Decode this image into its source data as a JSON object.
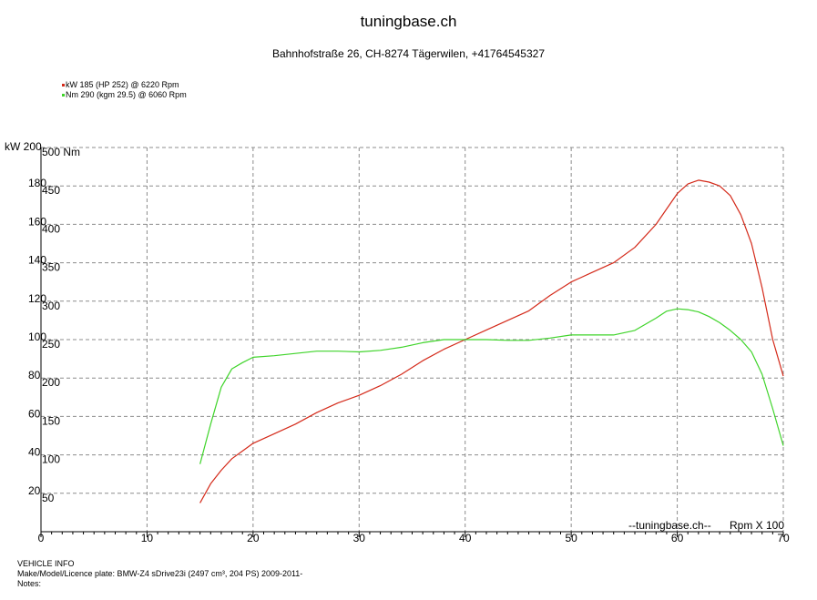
{
  "header": {
    "title": "tuningbase.ch",
    "subtitle": "Bahnhofstraße 26, CH-8274 Tägerwilen, +41764545327"
  },
  "colors": {
    "power": "#d42a1a",
    "torque": "#3fd42a",
    "grid": "#8c8c8c"
  },
  "chart_data": {
    "type": "line",
    "x_label": "Rpm X 100",
    "watermark": "--tuningbase.ch--",
    "x_range": [
      0,
      70
    ],
    "x_ticks": [
      0,
      10,
      20,
      30,
      40,
      50,
      60,
      70
    ],
    "y_left": {
      "unit": "kW",
      "range": [
        0,
        200
      ],
      "ticks": [
        0,
        20,
        40,
        60,
        80,
        100,
        120,
        140,
        160,
        180,
        200
      ]
    },
    "y_right": {
      "unit": "Nm",
      "range": [
        0,
        500
      ],
      "ticks": [
        50,
        100,
        150,
        200,
        250,
        300,
        350,
        400,
        450,
        500
      ]
    },
    "grid": true,
    "legend_position": "top-left",
    "series": [
      {
        "name": "kW 185 (HP 252) @ 6220 Rpm",
        "axis": "left",
        "x": [
          15,
          16,
          17,
          18,
          19,
          20,
          22,
          24,
          26,
          28,
          30,
          32,
          34,
          36,
          38,
          40,
          42,
          44,
          46,
          48,
          50,
          52,
          54,
          56,
          58,
          59,
          60,
          61,
          62,
          63,
          64,
          65,
          66,
          67,
          68,
          69,
          70
        ],
        "values": [
          15,
          25,
          32,
          38,
          42,
          46,
          51,
          56,
          62,
          67,
          71,
          76,
          82,
          89,
          95,
          100,
          105,
          110,
          115,
          123,
          130,
          135,
          140,
          148,
          160,
          168,
          176,
          181,
          183,
          182,
          180,
          175,
          165,
          150,
          127,
          100,
          81
        ]
      },
      {
        "name": "Nm 290 (kgm 29.5) @ 6060 Rpm",
        "axis": "right",
        "x": [
          15,
          16,
          17,
          18,
          19,
          20,
          22,
          24,
          26,
          28,
          30,
          32,
          34,
          36,
          38,
          40,
          42,
          44,
          46,
          48,
          50,
          52,
          54,
          56,
          58,
          59,
          60,
          61,
          62,
          63,
          64,
          65,
          66,
          67,
          68,
          69,
          70
        ],
        "values": [
          88,
          140,
          188,
          212,
          220,
          227,
          229,
          232,
          235,
          235,
          234,
          236,
          240,
          246,
          250,
          250,
          250,
          249,
          249,
          252,
          256,
          256,
          256,
          262,
          278,
          287,
          290,
          289,
          286,
          280,
          272,
          262,
          250,
          234,
          205,
          160,
          112
        ]
      }
    ]
  },
  "vehicle_info": {
    "heading": "VEHICLE INFO",
    "make_model": "Make/Model/Licence plate: BMW-Z4 sDrive23i (2497 cm³, 204 PS) 2009-2011-",
    "notes": "Notes:"
  }
}
